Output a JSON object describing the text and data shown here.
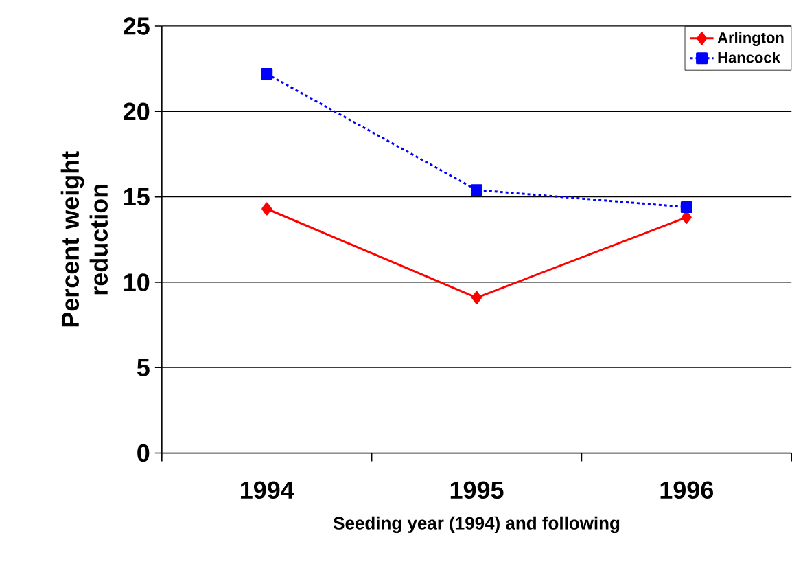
{
  "chart_data": {
    "type": "line",
    "xlabel": "Seeding year (1994) and following",
    "ylabel": "Percent weight reduction",
    "categories": [
      "1994",
      "1995",
      "1996"
    ],
    "series": [
      {
        "name": "Arlington",
        "color": "#ff0000",
        "values": [
          14.3,
          9.1,
          13.8
        ],
        "marker": "diamond",
        "line_style": "solid"
      },
      {
        "name": "Hancock",
        "color": "#0000ff",
        "values": [
          22.2,
          15.4,
          14.4
        ],
        "marker": "square",
        "line_style": "dotted"
      }
    ],
    "ylim": [
      0,
      25
    ],
    "yticks": [
      0,
      5,
      10,
      15,
      20,
      25
    ],
    "grid": "y",
    "legend": "top right"
  }
}
